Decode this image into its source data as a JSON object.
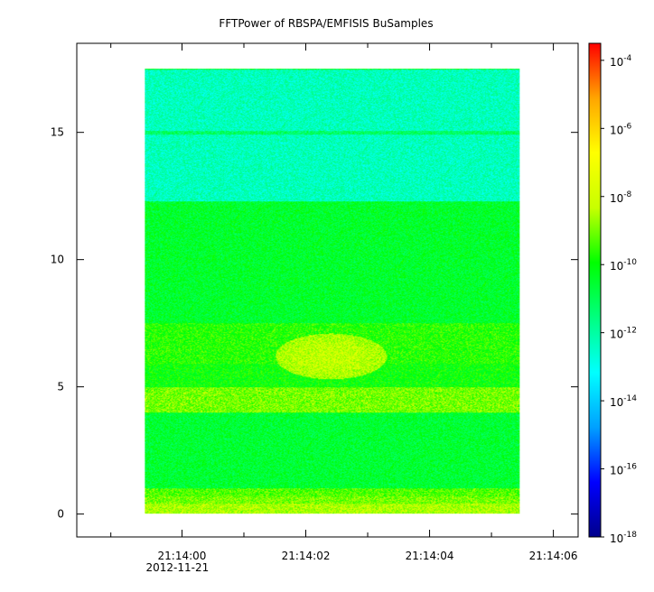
{
  "chart_data": {
    "type": "heatmap",
    "title": "FFTPower of RBSPA/EMFISIS  BuSamples",
    "x": {
      "ticks": [
        {
          "value": 0,
          "label": "21:14:00",
          "sublabel": "2012-11-21"
        },
        {
          "value": 2,
          "label": "21:14:02",
          "sublabel": ""
        },
        {
          "value": 4,
          "label": "21:14:04",
          "sublabel": ""
        },
        {
          "value": 6,
          "label": "21:14:06",
          "sublabel": ""
        }
      ],
      "minor_ticks": [
        -1.15,
        1,
        3,
        5
      ],
      "range": [
        -1.7,
        6.4
      ],
      "data_range": [
        -0.6,
        5.45
      ]
    },
    "y": {
      "ticks": [
        {
          "value": 0,
          "label": "0"
        },
        {
          "value": 5,
          "label": "5"
        },
        {
          "value": 10,
          "label": "10"
        },
        {
          "value": 15,
          "label": "15"
        }
      ],
      "range": [
        -0.9,
        18.5
      ],
      "data_range": [
        0,
        17.5
      ]
    },
    "colorbar": {
      "scale": "log",
      "range": [
        -18,
        -3.5
      ],
      "ticks": [
        {
          "exp": -4,
          "base": "10",
          "sup": "-4"
        },
        {
          "exp": -6,
          "base": "10",
          "sup": "-6"
        },
        {
          "exp": -8,
          "base": "10",
          "sup": "-8"
        },
        {
          "exp": -10,
          "base": "10",
          "sup": "-10"
        },
        {
          "exp": -12,
          "base": "10",
          "sup": "-12"
        },
        {
          "exp": -14,
          "base": "10",
          "sup": "-14"
        },
        {
          "exp": -16,
          "base": "10",
          "sup": "-16"
        },
        {
          "exp": -18,
          "base": "10",
          "sup": "-18"
        }
      ],
      "colormap": [
        "#00008b",
        "#0000ff",
        "#00a0ff",
        "#00ffff",
        "#00ff80",
        "#00ff00",
        "#c8ff00",
        "#ffff00",
        "#ffa500",
        "#ff0000"
      ]
    },
    "bands": [
      {
        "y": [
          0,
          0.4
        ],
        "log_power": -8.5
      },
      {
        "y": [
          0.4,
          0.7
        ],
        "log_power": -9.0
      },
      {
        "y": [
          0.7,
          1.0
        ],
        "log_power": -9.3
      },
      {
        "y": [
          1.0,
          4.0
        ],
        "log_power": -10.6
      },
      {
        "y": [
          4.0,
          5.0
        ],
        "log_power": -9.0
      },
      {
        "y": [
          5.0,
          5.9
        ],
        "log_power": -10.0
      },
      {
        "y": [
          5.9,
          7.5
        ],
        "log_power": -9.7
      },
      {
        "y": [
          7.5,
          12.3
        ],
        "log_power": -10.5
      },
      {
        "y": [
          12.3,
          17.5
        ],
        "log_power": -12.3
      }
    ],
    "features": [
      {
        "kind": "blob",
        "x_center": 2.4,
        "y_center": 6.2,
        "x_radius": 0.9,
        "y_radius": 0.9,
        "log_power": -8.6
      },
      {
        "kind": "line",
        "y": 15.0,
        "log_power": -11.2
      }
    ]
  }
}
